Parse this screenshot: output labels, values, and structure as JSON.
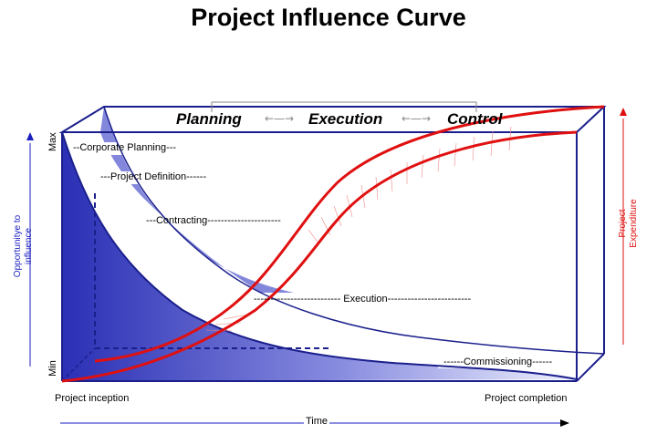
{
  "title": "Project Influence Curve",
  "phases": {
    "planning": "Planning",
    "execution": "Execution",
    "control": "Control"
  },
  "stages": {
    "corporate_planning": "--Corporate Planning---",
    "project_definition": "---Project Definition------",
    "contracting": "---Contracting----------------------",
    "execution": "-------------------------- Execution-------------------------",
    "commissioning": "------Commissioning------"
  },
  "axes": {
    "left_label_line1": "Opportunitye to",
    "left_label_line2": "influence",
    "max": "Max",
    "min": "Min",
    "right_label_line1": "Project",
    "right_label_line2": "Expenditure",
    "x_start": "Project inception",
    "x_end": "Project completion",
    "x_label": "Time"
  },
  "colors": {
    "influence_dark": "#2a2fb5",
    "influence_light": "#e8e9fb",
    "frame": "#1a1f8c",
    "expenditure": "#e01010",
    "axis_blue": "#1a1fc0",
    "axis_red": "#e01010"
  },
  "icons": {
    "phase_arrow": "double-arrow-icon",
    "left_axis_arrow": "arrow-up-icon",
    "right_axis_arrow": "arrow-up-icon",
    "time_arrow": "arrow-right-icon"
  }
}
